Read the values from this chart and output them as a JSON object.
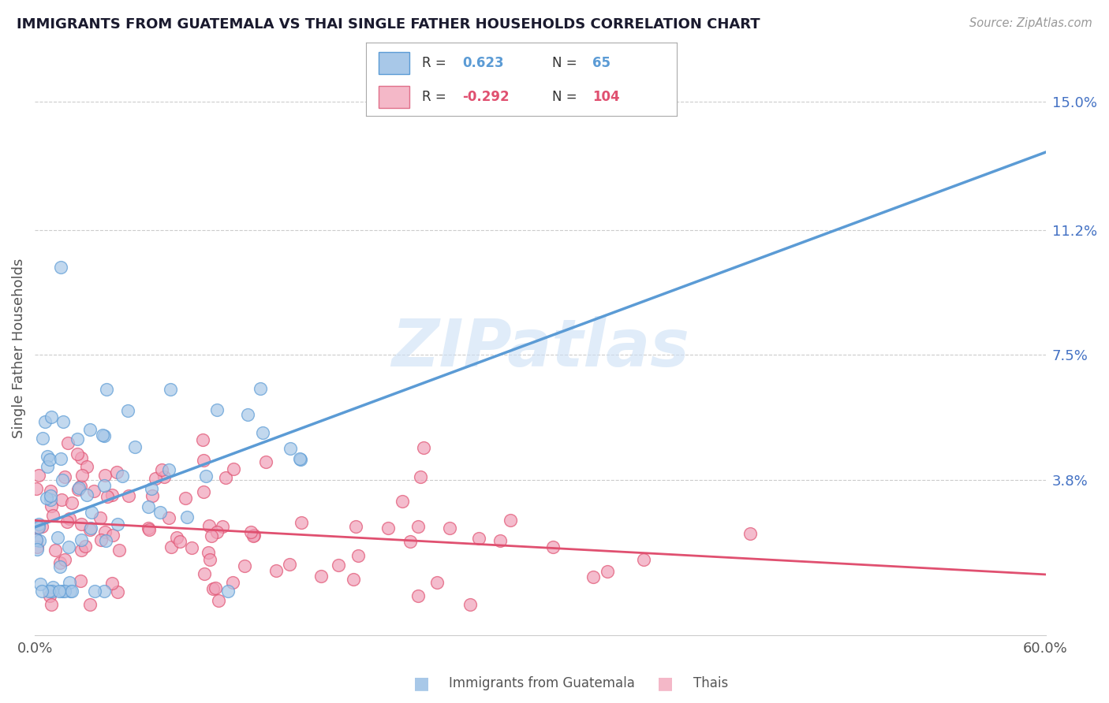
{
  "title": "IMMIGRANTS FROM GUATEMALA VS THAI SINGLE FATHER HOUSEHOLDS CORRELATION CHART",
  "source_text": "Source: ZipAtlas.com",
  "ylabel": "Single Father Households",
  "xlim": [
    0.0,
    0.6
  ],
  "ylim": [
    -0.008,
    0.162
  ],
  "x_tick_positions": [
    0.0,
    0.1,
    0.2,
    0.3,
    0.4,
    0.5,
    0.6
  ],
  "x_tick_labels": [
    "0.0%",
    "",
    "",
    "",
    "",
    "",
    "60.0%"
  ],
  "y_ticks_right": [
    0.0,
    0.038,
    0.075,
    0.112,
    0.15
  ],
  "y_tick_labels_right": [
    "",
    "3.8%",
    "7.5%",
    "11.2%",
    "15.0%"
  ],
  "blue_color": "#5b9bd5",
  "blue_light": "#a8c8e8",
  "pink_color": "#e05070",
  "pink_light": "#f0a0b8",
  "watermark_text": "ZIPatlas",
  "watermark_color": "#cce0f5",
  "blue_line": [
    [
      0.0,
      0.024
    ],
    [
      0.6,
      0.135
    ]
  ],
  "pink_line": [
    [
      0.0,
      0.026
    ],
    [
      0.6,
      0.01
    ]
  ],
  "legend_R1": "0.623",
  "legend_N1": "65",
  "legend_R2": "-0.292",
  "legend_N2": "104",
  "grid_color": "#cccccc",
  "spine_color": "#cccccc",
  "title_color": "#1a1a2e",
  "label_color": "#555555",
  "right_axis_color": "#4472c4"
}
